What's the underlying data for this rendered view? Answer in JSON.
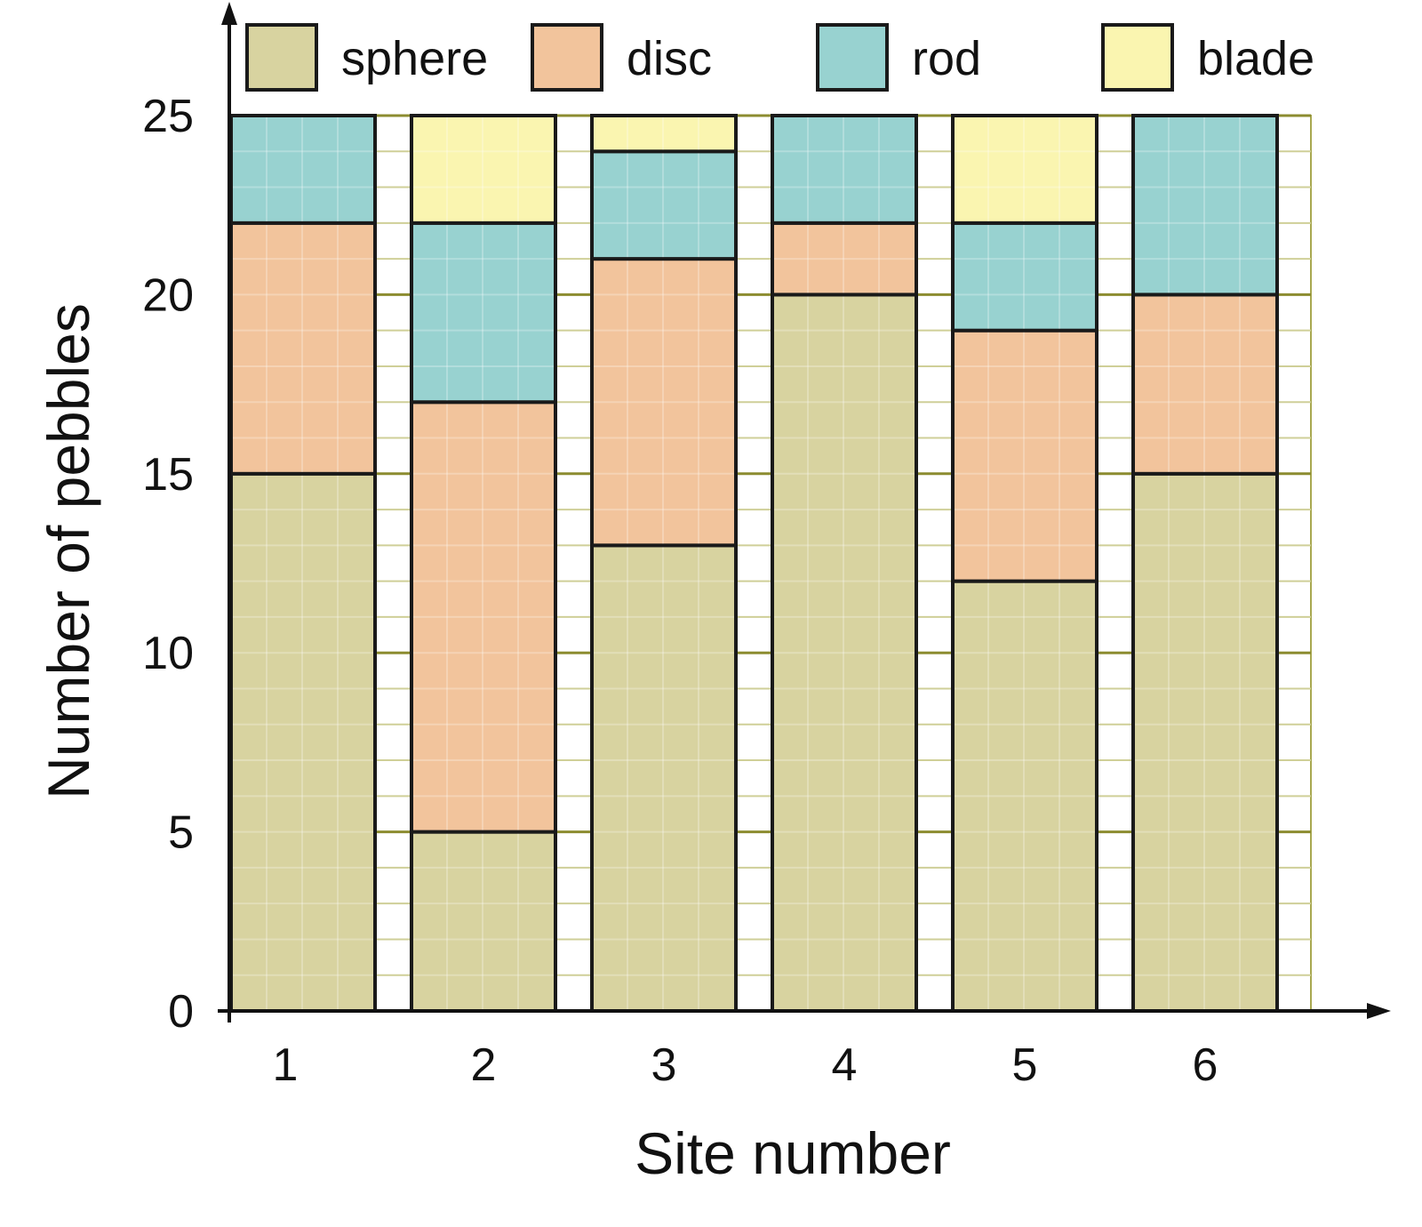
{
  "chart_data": {
    "type": "bar",
    "stacked": true,
    "xlabel": "Site number",
    "ylabel": "Number of pebbles",
    "categories": [
      "1",
      "2",
      "3",
      "4",
      "5",
      "6"
    ],
    "ylim": [
      0,
      25
    ],
    "yticks": [
      "0",
      "5",
      "10",
      "15",
      "20",
      "25"
    ],
    "grid": true,
    "legend_position": "top",
    "series": [
      {
        "name": "sphere",
        "color": "#d8d3a0",
        "values": [
          15,
          5,
          13,
          20,
          12,
          15
        ]
      },
      {
        "name": "disc",
        "color": "#f2c49c",
        "values": [
          7,
          12,
          8,
          2,
          7,
          5
        ]
      },
      {
        "name": "rod",
        "color": "#98d2d0",
        "values": [
          3,
          5,
          3,
          3,
          3,
          5
        ]
      },
      {
        "name": "blade",
        "color": "#faf5b0",
        "values": [
          0,
          3,
          1,
          0,
          3,
          0
        ]
      }
    ]
  }
}
